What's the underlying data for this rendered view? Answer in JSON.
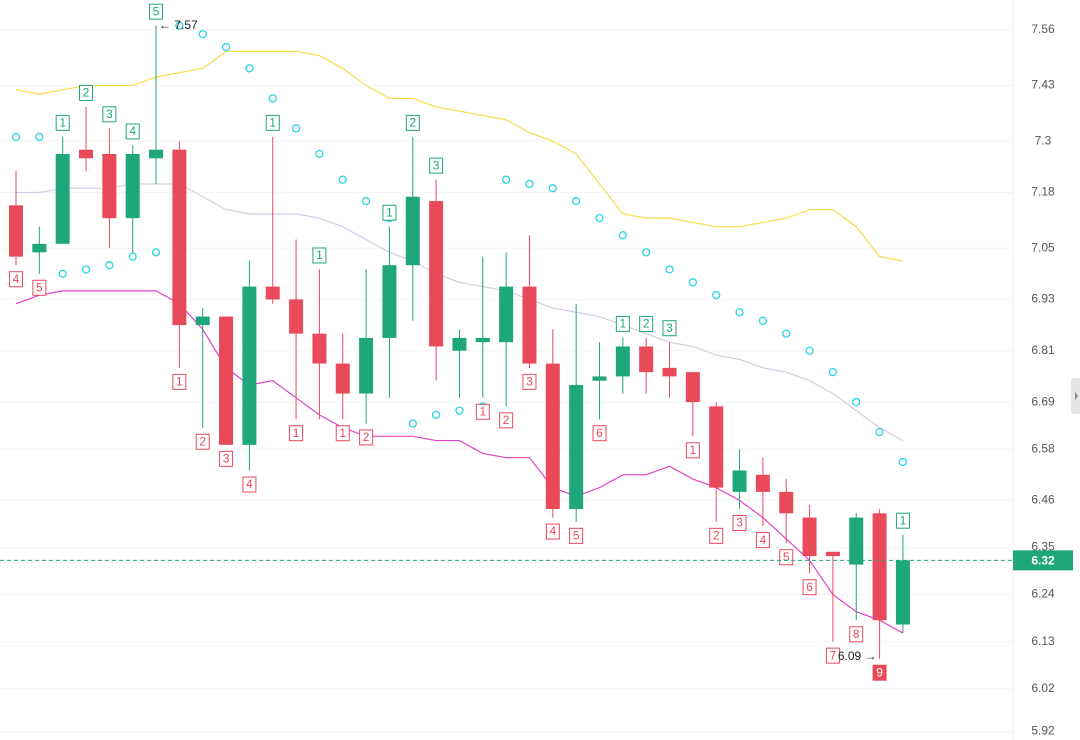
{
  "chart_data": {
    "type": "candlestick",
    "up_color": "#1fa67a",
    "down_color": "#e84a5a",
    "open": [
      7.15,
      7.04,
      7.06,
      7.28,
      7.27,
      7.12,
      7.26,
      7.28,
      6.87,
      6.89,
      6.59,
      6.96,
      6.93,
      6.85,
      6.78,
      6.71,
      6.84,
      7.01,
      7.16,
      6.81,
      6.83,
      6.83,
      6.96,
      6.78,
      6.44,
      6.74,
      6.75,
      6.82,
      6.77,
      6.76,
      6.68,
      6.48,
      6.52,
      6.48,
      6.42,
      6.34,
      6.31,
      6.43,
      6.17
    ],
    "high": [
      7.23,
      7.1,
      7.31,
      7.38,
      7.33,
      7.29,
      7.57,
      7.3,
      6.91,
      6.89,
      7.02,
      7.31,
      7.07,
      7.0,
      6.85,
      7.0,
      7.1,
      7.31,
      7.21,
      6.86,
      7.03,
      7.04,
      7.08,
      6.86,
      6.92,
      6.83,
      6.84,
      6.84,
      6.83,
      6.76,
      6.69,
      6.58,
      6.56,
      6.51,
      6.45,
      6.34,
      6.43,
      6.44,
      6.38
    ],
    "low": [
      7.01,
      6.99,
      7.06,
      7.23,
      7.05,
      7.04,
      7.2,
      6.77,
      6.63,
      6.59,
      6.53,
      6.92,
      6.65,
      6.65,
      6.65,
      6.64,
      6.7,
      6.88,
      6.74,
      6.7,
      6.7,
      6.68,
      6.77,
      6.42,
      6.41,
      6.65,
      6.71,
      6.71,
      6.7,
      6.61,
      6.41,
      6.44,
      6.4,
      6.36,
      6.29,
      6.13,
      6.18,
      6.09,
      6.15
    ],
    "close": [
      7.03,
      7.06,
      7.27,
      7.26,
      7.12,
      7.27,
      7.28,
      6.87,
      6.89,
      6.59,
      6.96,
      6.93,
      6.85,
      6.78,
      6.71,
      6.84,
      7.01,
      7.17,
      6.82,
      6.84,
      6.84,
      6.96,
      6.78,
      6.44,
      6.73,
      6.75,
      6.82,
      6.76,
      6.75,
      6.69,
      6.49,
      6.53,
      6.48,
      6.43,
      6.33,
      6.33,
      6.42,
      6.18,
      6.32
    ],
    "lines": [
      {
        "color": "#f5dc4a",
        "values": [
          7.42,
          7.41,
          7.42,
          7.43,
          7.43,
          7.43,
          7.45,
          7.46,
          7.47,
          7.51,
          7.51,
          7.51,
          7.51,
          7.5,
          7.47,
          7.43,
          7.4,
          7.4,
          7.38,
          7.37,
          7.36,
          7.35,
          7.32,
          7.3,
          7.27,
          7.2,
          7.13,
          7.12,
          7.12,
          7.11,
          7.1,
          7.1,
          7.11,
          7.12,
          7.14,
          7.14,
          7.1,
          7.03,
          7.02
        ]
      },
      {
        "color": "#d4cbe3",
        "values": [
          7.18,
          7.18,
          7.19,
          7.19,
          7.19,
          7.2,
          7.2,
          7.2,
          7.17,
          7.14,
          7.13,
          7.13,
          7.13,
          7.12,
          7.1,
          7.07,
          7.04,
          7.02,
          6.99,
          6.97,
          6.96,
          6.95,
          6.93,
          6.91,
          6.9,
          6.89,
          6.87,
          6.85,
          6.83,
          6.82,
          6.8,
          6.79,
          6.77,
          6.76,
          6.74,
          6.71,
          6.67,
          6.63,
          6.6
        ]
      },
      {
        "color": "#e040c8",
        "values": [
          6.92,
          6.94,
          6.95,
          6.95,
          6.95,
          6.95,
          6.95,
          6.92,
          6.86,
          6.77,
          6.73,
          6.74,
          6.7,
          6.66,
          6.63,
          6.61,
          6.61,
          6.61,
          6.6,
          6.6,
          6.57,
          6.56,
          6.56,
          6.49,
          6.47,
          6.49,
          6.52,
          6.52,
          6.54,
          6.51,
          6.49,
          6.46,
          6.42,
          6.37,
          6.32,
          6.24,
          6.2,
          6.18,
          6.15
        ]
      }
    ],
    "sar": {
      "color": "#29d3e8",
      "values": [
        7.31,
        7.31,
        6.99,
        7.0,
        7.01,
        7.03,
        7.04,
        7.57,
        7.55,
        7.52,
        7.47,
        7.4,
        7.33,
        7.27,
        7.21,
        7.16,
        7.12,
        6.64,
        6.66,
        6.67,
        6.68,
        7.21,
        7.2,
        7.19,
        7.16,
        7.12,
        7.08,
        7.04,
        7.0,
        6.97,
        6.94,
        6.9,
        6.88,
        6.85,
        6.81,
        6.76,
        6.69,
        6.62,
        6.55
      ]
    },
    "td_up_counts": [
      null,
      null,
      1,
      2,
      3,
      4,
      5,
      null,
      null,
      null,
      null,
      1,
      null,
      1,
      null,
      null,
      1,
      2,
      3,
      null,
      null,
      null,
      null,
      null,
      null,
      null,
      1,
      2,
      3,
      null,
      null,
      null,
      null,
      null,
      null,
      null,
      null,
      null,
      1
    ],
    "td_down_counts": [
      4,
      5,
      null,
      null,
      null,
      null,
      null,
      1,
      2,
      3,
      4,
      null,
      1,
      null,
      1,
      2,
      null,
      null,
      null,
      null,
      1,
      2,
      3,
      4,
      5,
      6,
      null,
      null,
      null,
      1,
      2,
      3,
      4,
      5,
      6,
      7,
      8,
      9,
      null
    ],
    "high_label": {
      "value": 7.57,
      "label": "← 7.57"
    },
    "low_label": {
      "value": 6.09,
      "label": "6.09 →"
    },
    "last_price": 6.32,
    "ylim": [
      5.9,
      7.63
    ],
    "yticks": [
      7.56,
      7.43,
      7.3,
      7.18,
      7.05,
      6.93,
      6.81,
      6.69,
      6.58,
      6.46,
      6.35,
      6.24,
      6.13,
      6.02,
      5.92
    ],
    "grid": true
  }
}
